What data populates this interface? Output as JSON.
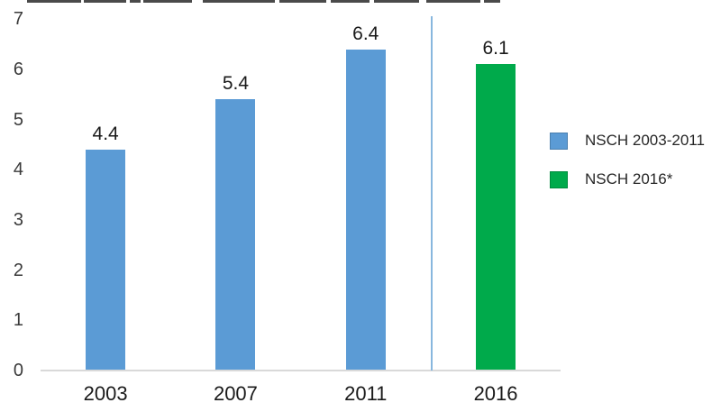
{
  "chart_data": {
    "type": "bar",
    "categories": [
      "2003",
      "2007",
      "2011",
      "2016"
    ],
    "series": [
      {
        "name": "NSCH 2003-2011",
        "color": "#5B9BD5",
        "values": [
          4.4,
          5.4,
          6.4,
          null
        ]
      },
      {
        "name": "NSCH 2016*",
        "color": "#00AA4B",
        "values": [
          null,
          null,
          null,
          6.1
        ]
      }
    ],
    "data_labels": [
      "4.4",
      "5.4",
      "6.4",
      "6.1"
    ],
    "ylim": [
      0,
      7
    ],
    "yticks": [
      0,
      1,
      2,
      3,
      4,
      5,
      6,
      7
    ],
    "grid": false,
    "legend_position": "right",
    "separator_line": {
      "between": [
        "2011",
        "2016"
      ],
      "color": "#88B7DE"
    },
    "axis_line_color": "#D9D9D9",
    "title_cropped_out_of_frame": true
  },
  "legend": {
    "items": [
      {
        "label": "NSCH 2003-2011",
        "color": "#5B9BD5"
      },
      {
        "label": "NSCH 2016*",
        "color": "#00AA4B"
      }
    ]
  }
}
